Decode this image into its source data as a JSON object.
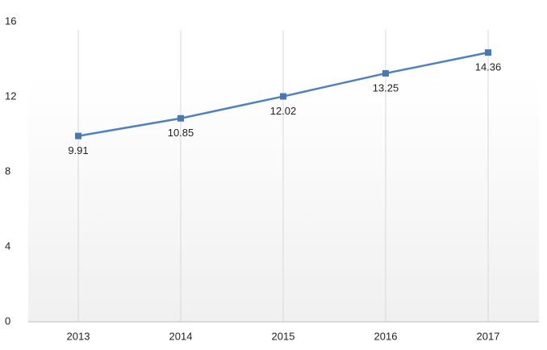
{
  "chart_data": {
    "type": "line",
    "categories": [
      "2013",
      "2014",
      "2015",
      "2016",
      "2017"
    ],
    "values": [
      9.91,
      10.85,
      12.02,
      13.25,
      14.36
    ],
    "color": "#4f81bd",
    "marker_color": "#4a78b0",
    "ylim": [
      0,
      16
    ],
    "yticks": [
      0,
      4,
      8,
      12,
      16
    ],
    "grid": true,
    "data_labels": true
  }
}
